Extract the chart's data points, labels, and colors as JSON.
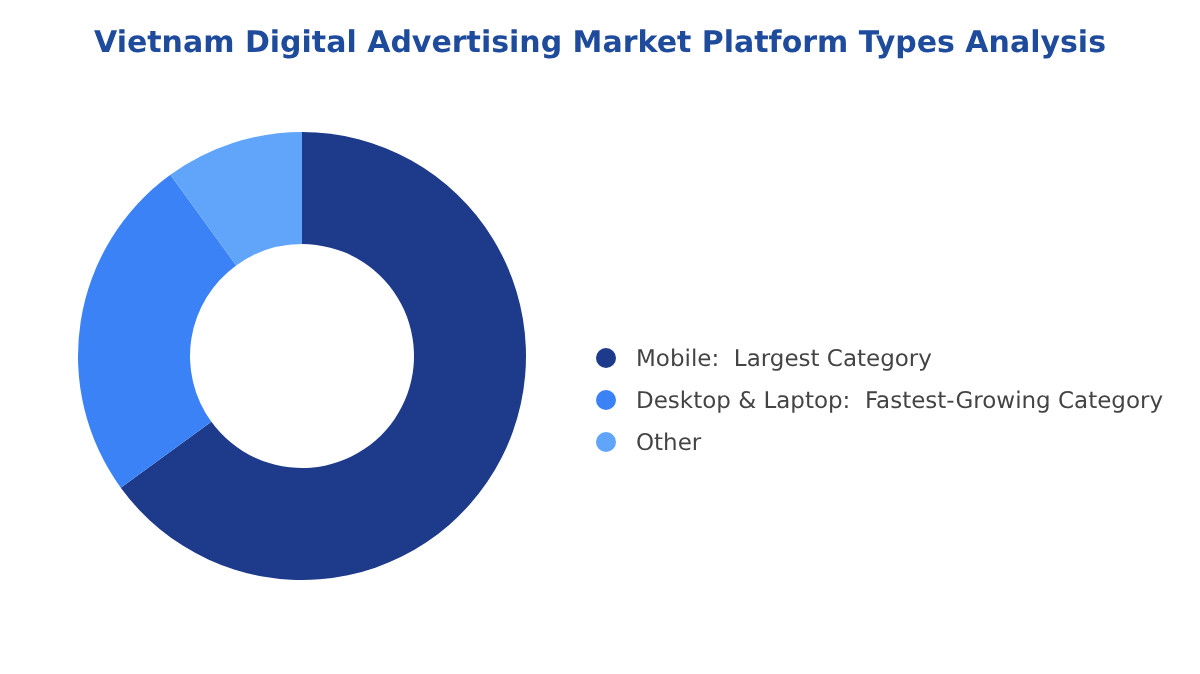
{
  "chart_data": {
    "type": "donut",
    "title": "Vietnam Digital Advertising Market Platform Types Analysis",
    "categories": [
      "Mobile:  Largest Category",
      "Desktop & Laptop:  Fastest-Growing Category",
      "Other"
    ],
    "values": [
      65,
      25,
      10
    ],
    "colors": [
      "#1e3a8a",
      "#3b82f6",
      "#60a5fa"
    ],
    "legend": "right"
  }
}
